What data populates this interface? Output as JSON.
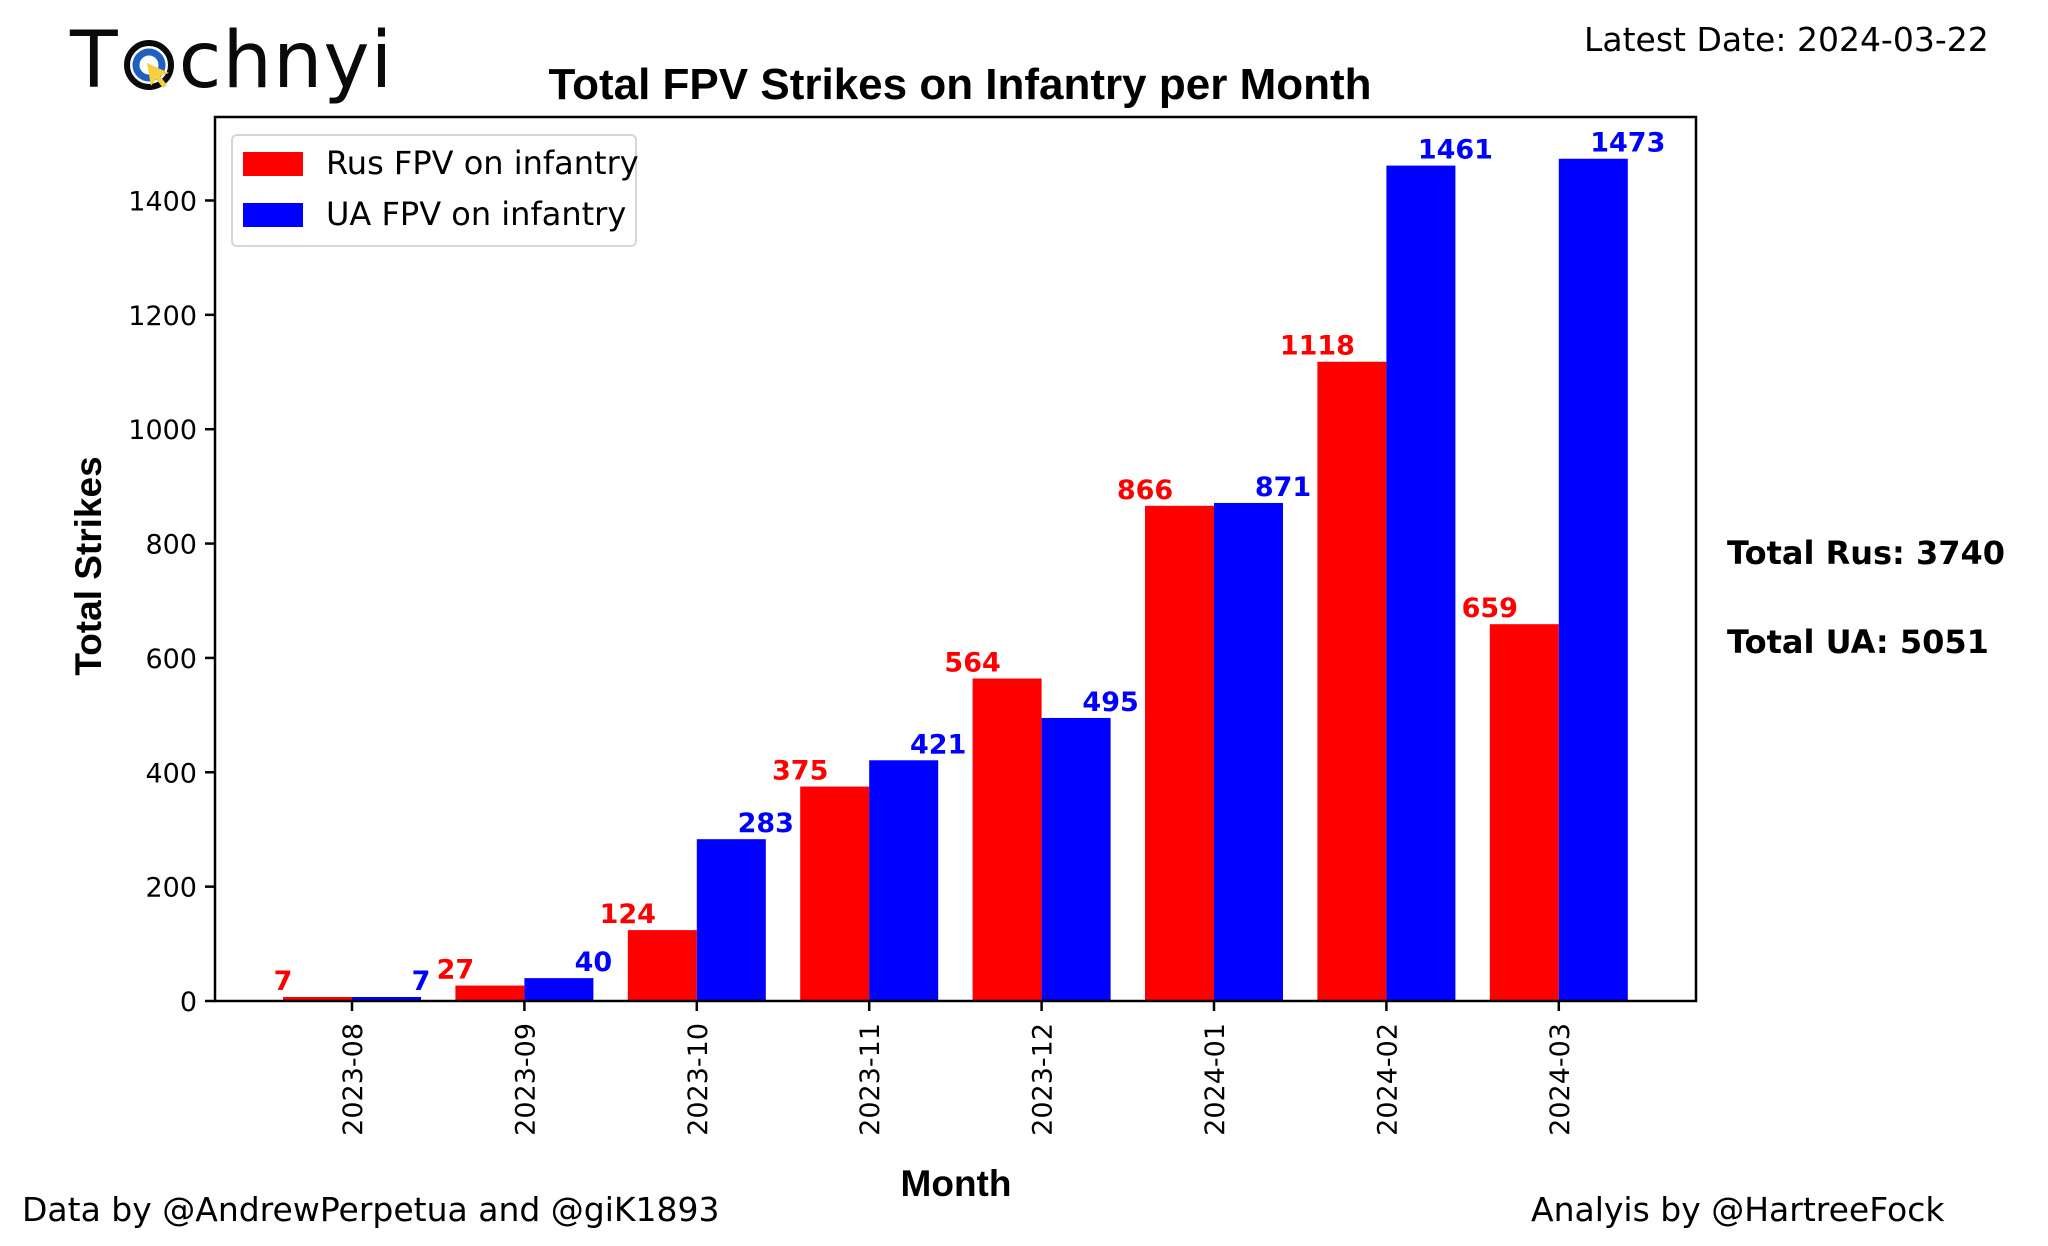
{
  "branding": {
    "logo_text_start": "T",
    "logo_text_end": "chnyi"
  },
  "header": {
    "latest_date": "Latest Date: 2024-03-22"
  },
  "footer": {
    "data_credit": "Data by @AndrewPerpetua and @giK1893",
    "analysis_credit": "Analyis by @HartreeFock"
  },
  "totals": {
    "rus": "Total Rus: 3740",
    "ua": "Total UA: 5051"
  },
  "colors": {
    "rus": "#ff0000",
    "ua": "#0000ff",
    "logo_ring": "#1f5fbf",
    "logo_cursor": "#f5d042"
  },
  "chart_data": {
    "type": "bar",
    "title": "Total FPV Strikes on Infantry per Month",
    "xlabel": "Month",
    "ylabel": "Total Strikes",
    "categories": [
      "2023-08",
      "2023-09",
      "2023-10",
      "2023-11",
      "2023-12",
      "2024-01",
      "2024-02",
      "2024-03"
    ],
    "series": [
      {
        "name": "Rus FPV on infantry",
        "color": "#ff0000",
        "values": [
          7,
          27,
          124,
          375,
          564,
          866,
          1118,
          659
        ]
      },
      {
        "name": "UA FPV on infantry",
        "color": "#0000ff",
        "values": [
          7,
          40,
          283,
          421,
          495,
          871,
          1461,
          1473
        ]
      }
    ],
    "yticks": [
      0,
      200,
      400,
      600,
      800,
      1000,
      1200,
      1400
    ],
    "ylim": [
      0,
      1546
    ],
    "grid": false,
    "legend_position": "top-left"
  }
}
